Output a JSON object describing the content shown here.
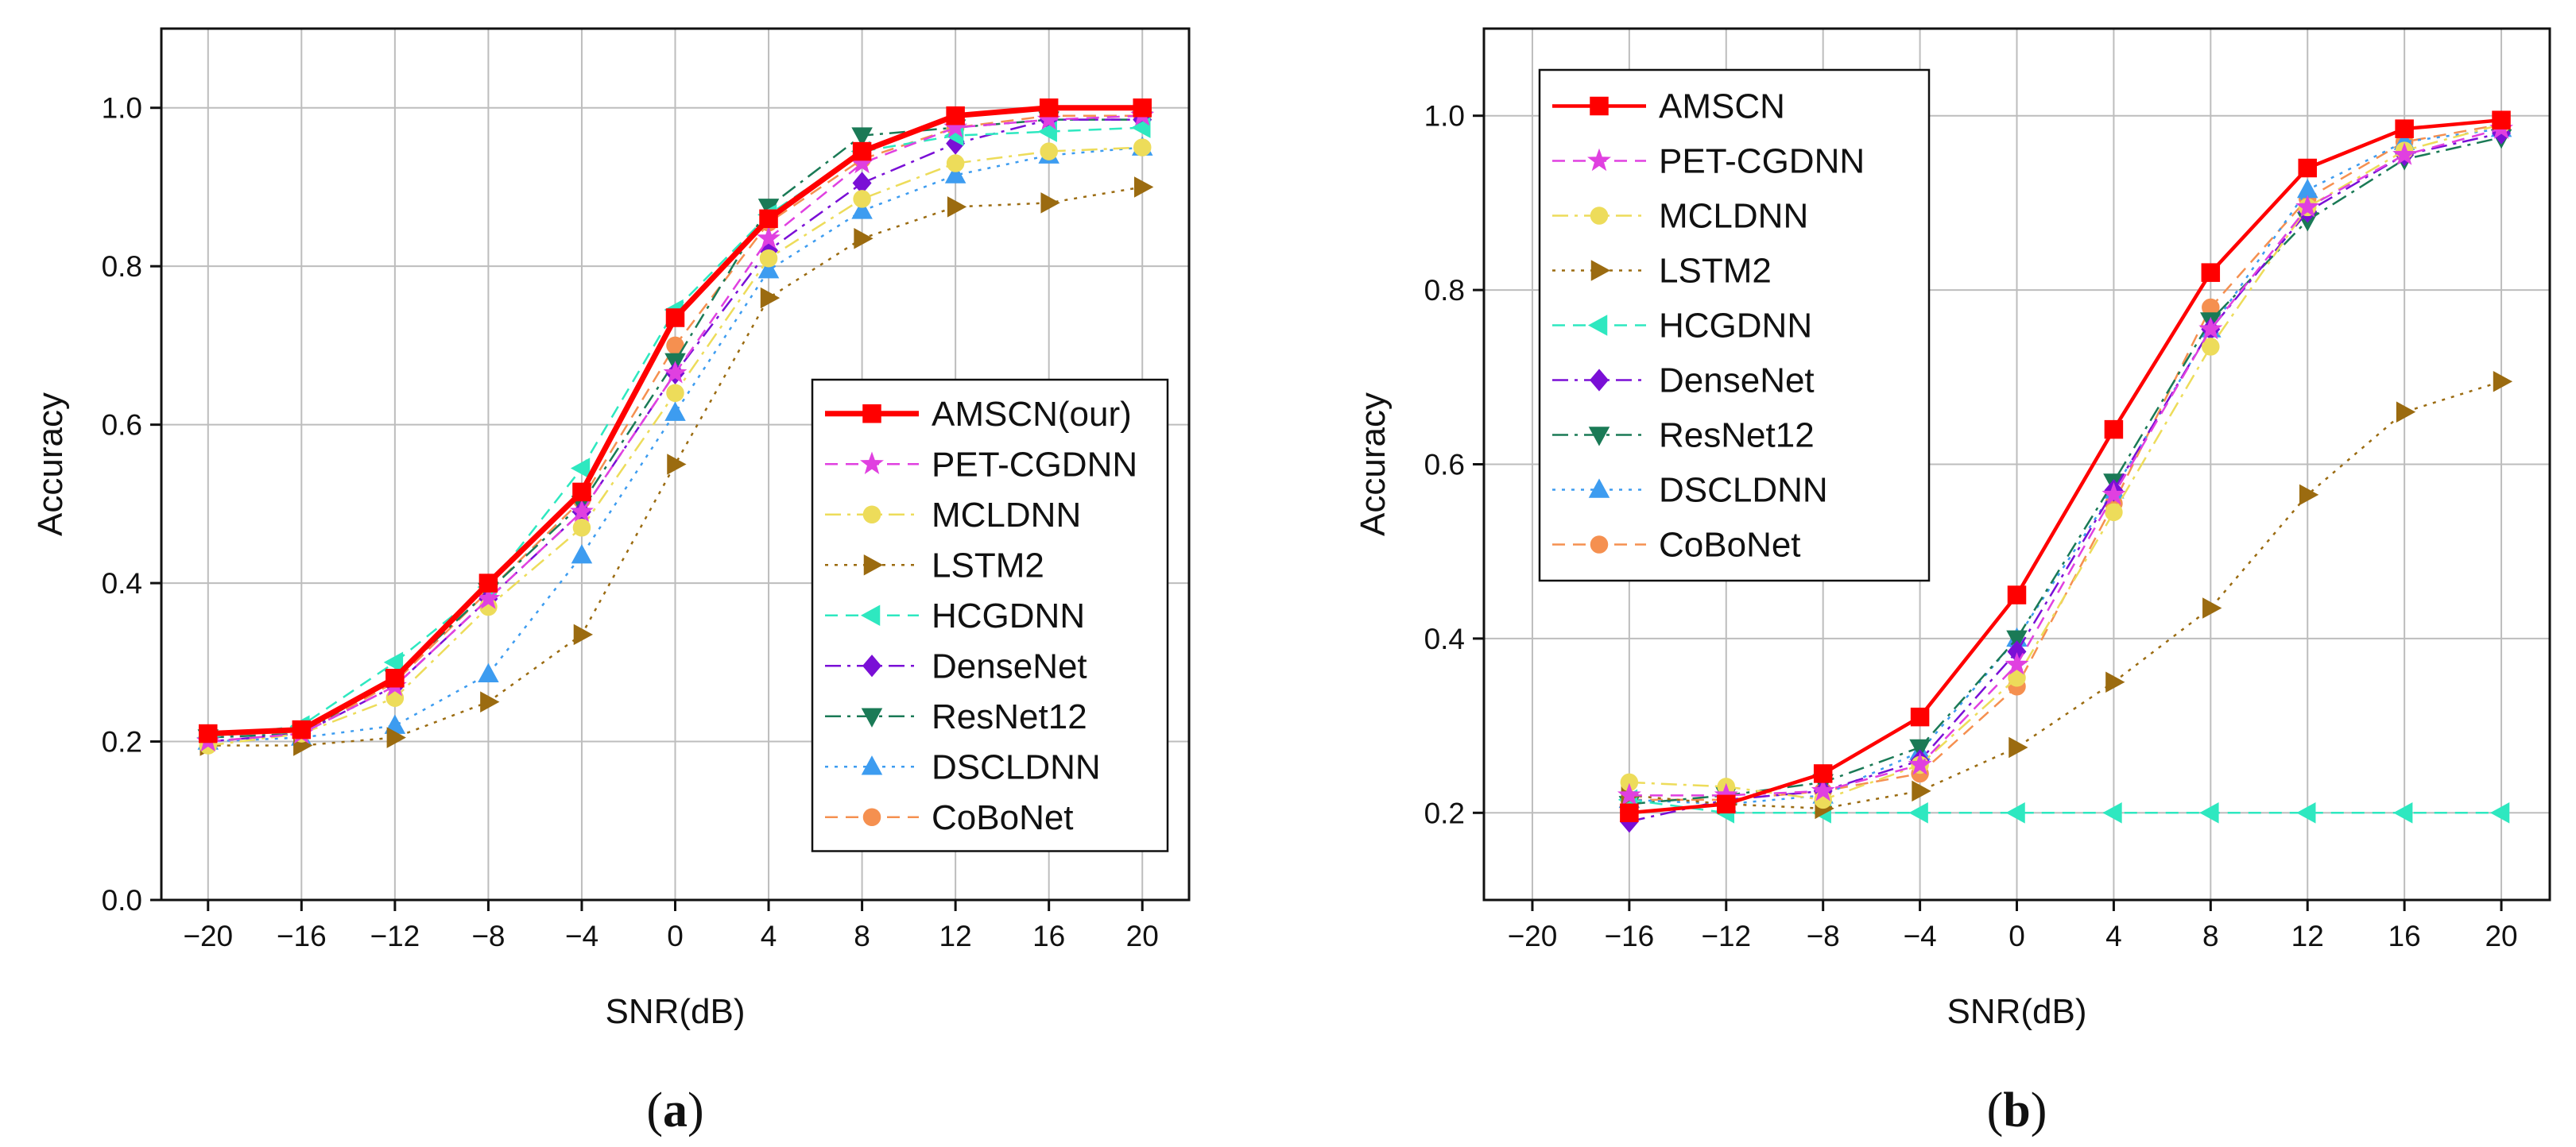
{
  "chart_data": [
    {
      "type": "line",
      "panel_label": "a",
      "panel_label_parts": [
        "(",
        "a",
        ")"
      ],
      "xlabel": "SNR(dB)",
      "ylabel": "Accuracy",
      "xlim": [
        -22,
        22
      ],
      "ylim": [
        0.0,
        1.1
      ],
      "xticks": [
        -20,
        -16,
        -12,
        -8,
        -4,
        0,
        4,
        8,
        12,
        16,
        20
      ],
      "xtick_labels": [
        "−20",
        "−16",
        "−12",
        "−8",
        "−4",
        "0",
        "4",
        "8",
        "12",
        "16",
        "20"
      ],
      "yticks": [
        0.0,
        0.2,
        0.4,
        0.6,
        0.8,
        1.0
      ],
      "ytick_labels": [
        "0.0",
        "0.2",
        "0.4",
        "0.6",
        "0.8",
        "1.0"
      ],
      "grid": true,
      "legend_position": "center-right",
      "x": [
        -20,
        -16,
        -12,
        -8,
        -4,
        0,
        4,
        8,
        12,
        16,
        20
      ],
      "series": [
        {
          "name": "AMSCN(our)",
          "color": "#ff0000",
          "marker": "square",
          "dash": "solid",
          "values": [
            0.21,
            0.215,
            0.28,
            0.4,
            0.515,
            0.735,
            0.86,
            0.945,
            0.99,
            1.0,
            1.0
          ]
        },
        {
          "name": "PET-CGDNN",
          "color": "#e040e0",
          "marker": "star",
          "dash": "dash",
          "values": [
            0.2,
            0.21,
            0.27,
            0.38,
            0.49,
            0.665,
            0.835,
            0.93,
            0.975,
            0.985,
            0.99
          ]
        },
        {
          "name": "MCLDNN",
          "color": "#eddc5a",
          "marker": "circle",
          "dash": "dashdot",
          "values": [
            0.195,
            0.21,
            0.255,
            0.37,
            0.47,
            0.64,
            0.81,
            0.885,
            0.93,
            0.945,
            0.95
          ]
        },
        {
          "name": "LSTM2",
          "color": "#9b6b10",
          "marker": "triangle-right",
          "dash": "dot",
          "values": [
            0.195,
            0.195,
            0.205,
            0.25,
            0.335,
            0.55,
            0.76,
            0.835,
            0.875,
            0.88,
            0.9
          ]
        },
        {
          "name": "HCGDNN",
          "color": "#2ee8c0",
          "marker": "triangle-left",
          "dash": "dash",
          "values": [
            0.205,
            0.22,
            0.3,
            0.395,
            0.545,
            0.745,
            0.865,
            0.945,
            0.965,
            0.97,
            0.975
          ]
        },
        {
          "name": "DenseNet",
          "color": "#7a0fd6",
          "marker": "diamond",
          "dash": "dashdot",
          "values": [
            0.2,
            0.21,
            0.27,
            0.38,
            0.49,
            0.665,
            0.82,
            0.905,
            0.955,
            0.985,
            0.985
          ]
        },
        {
          "name": "ResNet12",
          "color": "#1a7a56",
          "marker": "triangle-down",
          "dash": "dashdot",
          "values": [
            0.205,
            0.21,
            0.28,
            0.39,
            0.5,
            0.68,
            0.875,
            0.965,
            0.975,
            0.985,
            0.985
          ]
        },
        {
          "name": "DSCLDNN",
          "color": "#3d9cf0",
          "marker": "triangle-up",
          "dash": "dot",
          "values": [
            0.2,
            0.205,
            0.22,
            0.285,
            0.435,
            0.615,
            0.795,
            0.87,
            0.915,
            0.94,
            0.95
          ]
        },
        {
          "name": "CoBoNet",
          "color": "#f59050",
          "marker": "circle",
          "dash": "dash",
          "values": [
            0.2,
            0.21,
            0.275,
            0.39,
            0.505,
            0.7,
            0.855,
            0.935,
            0.975,
            0.99,
            0.99
          ]
        }
      ]
    },
    {
      "type": "line",
      "panel_label": "b",
      "panel_label_parts": [
        "(",
        "b",
        ")"
      ],
      "xlabel": "SNR(dB)",
      "ylabel": "Accuracy",
      "xlim": [
        -22,
        22
      ],
      "ylim": [
        0.1,
        1.1
      ],
      "xticks": [
        -20,
        -16,
        -12,
        -8,
        -4,
        0,
        4,
        8,
        12,
        16,
        20
      ],
      "xtick_labels": [
        "−20",
        "−16",
        "−12",
        "−8",
        "−4",
        "0",
        "4",
        "8",
        "12",
        "16",
        "20"
      ],
      "yticks": [
        0.2,
        0.4,
        0.6,
        0.8,
        1.0
      ],
      "ytick_labels": [
        "0.2",
        "0.4",
        "0.6",
        "0.8",
        "1.0"
      ],
      "grid": true,
      "legend_position": "top-left",
      "x": [
        -16,
        -12,
        -8,
        -4,
        0,
        4,
        8,
        12,
        16,
        20
      ],
      "series": [
        {
          "name": "AMSCN",
          "color": "#ff0000",
          "marker": "square",
          "dash": "solid",
          "values": [
            0.2,
            0.21,
            0.245,
            0.31,
            0.45,
            0.64,
            0.82,
            0.94,
            0.985,
            0.995
          ]
        },
        {
          "name": "PET-CGDNN",
          "color": "#e040e0",
          "marker": "star",
          "dash": "dash",
          "values": [
            0.22,
            0.22,
            0.225,
            0.255,
            0.37,
            0.565,
            0.755,
            0.895,
            0.955,
            0.985
          ]
        },
        {
          "name": "MCLDNN",
          "color": "#eddc5a",
          "marker": "circle",
          "dash": "dashdot",
          "values": [
            0.235,
            0.23,
            0.215,
            0.255,
            0.355,
            0.545,
            0.735,
            0.895,
            0.96,
            0.99
          ]
        },
        {
          "name": "LSTM2",
          "color": "#9b6b10",
          "marker": "triangle-right",
          "dash": "dot",
          "values": [
            0.22,
            0.21,
            0.205,
            0.225,
            0.275,
            0.35,
            0.435,
            0.565,
            0.66,
            0.695
          ]
        },
        {
          "name": "HCGDNN",
          "color": "#2ee8c0",
          "marker": "triangle-left",
          "dash": "dash",
          "values": [
            0.215,
            0.2,
            0.2,
            0.2,
            0.2,
            0.2,
            0.2,
            0.2,
            0.2,
            0.2
          ]
        },
        {
          "name": "DenseNet",
          "color": "#7a0fd6",
          "marker": "diamond",
          "dash": "dashdot",
          "values": [
            0.19,
            0.215,
            0.225,
            0.26,
            0.385,
            0.57,
            0.755,
            0.89,
            0.955,
            0.98
          ]
        },
        {
          "name": "ResNet12",
          "color": "#1a7a56",
          "marker": "triangle-down",
          "dash": "dashdot",
          "values": [
            0.21,
            0.22,
            0.235,
            0.275,
            0.4,
            0.58,
            0.765,
            0.88,
            0.95,
            0.975
          ]
        },
        {
          "name": "DSCLDNN",
          "color": "#3d9cf0",
          "marker": "triangle-up",
          "dash": "dot",
          "values": [
            0.215,
            0.21,
            0.22,
            0.27,
            0.4,
            0.57,
            0.755,
            0.915,
            0.97,
            0.985
          ]
        },
        {
          "name": "CoBoNet",
          "color": "#f59050",
          "marker": "circle",
          "dash": "dash",
          "values": [
            0.215,
            0.215,
            0.225,
            0.245,
            0.345,
            0.555,
            0.78,
            0.905,
            0.97,
            0.99
          ]
        }
      ]
    }
  ]
}
